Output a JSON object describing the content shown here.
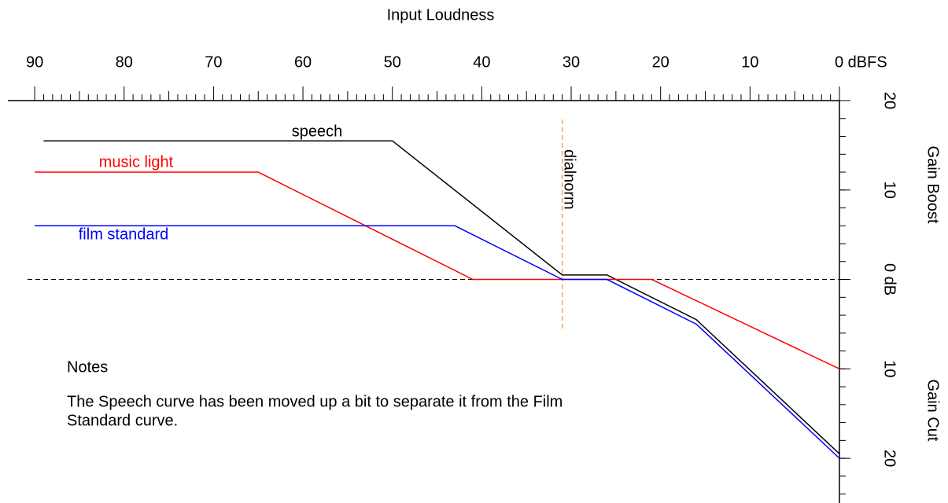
{
  "chart_data": {
    "type": "line",
    "title": "Input Loudness",
    "y_label_top": "Gain Boost",
    "y_label_bottom": "Gain Cut",
    "xlim": [
      93,
      0
    ],
    "xticks": [
      90,
      80,
      70,
      60,
      50,
      40,
      30,
      20,
      10,
      {
        "value": 0,
        "label": "0 dBFS"
      }
    ],
    "ylim": [
      -25,
      20
    ],
    "yticks": [
      20,
      10,
      {
        "value": 0,
        "label": "0 dB"
      },
      {
        "value": -10,
        "label": "10"
      },
      {
        "value": -20,
        "label": "20"
      }
    ],
    "zero_line": true,
    "series": [
      {
        "name": "speech",
        "color": "#000000",
        "x": [
          89,
          50,
          31,
          26,
          16,
          0
        ],
        "values": [
          15.5,
          15.5,
          0.5,
          0.5,
          -4.5,
          -19.5
        ]
      },
      {
        "name": "music light",
        "color": "#ff0000",
        "x": [
          90,
          65,
          41,
          21,
          0
        ],
        "values": [
          12,
          12,
          0,
          0,
          -10
        ]
      },
      {
        "name": "film standard",
        "color": "#0000ff",
        "x": [
          90,
          43,
          31,
          26,
          16,
          0
        ],
        "values": [
          6,
          6,
          0,
          0,
          -5,
          -20
        ]
      }
    ],
    "dialnorm": {
      "label": "dialnorm",
      "x": 31,
      "color": "#f4a460"
    },
    "notes": {
      "title": "Notes",
      "lines": [
        "The Speech curve has been moved up a bit to separate it from the Film",
        "Standard curve."
      ]
    }
  }
}
